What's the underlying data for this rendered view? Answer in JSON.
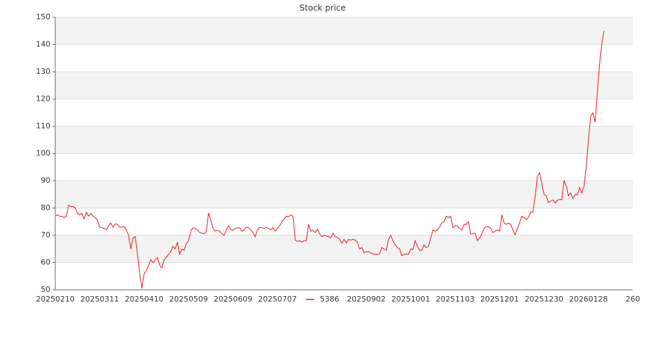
{
  "chart_data": {
    "type": "line",
    "title": "Stock price",
    "categories": [
      "20250210",
      null,
      null,
      null,
      null,
      null,
      null,
      null,
      null,
      null,
      null,
      null,
      null,
      null,
      null,
      null,
      null,
      null,
      null,
      null,
      "20250311",
      null,
      null,
      null,
      null,
      null,
      null,
      null,
      null,
      null,
      null,
      null,
      null,
      null,
      null,
      null,
      null,
      null,
      null,
      null,
      "20250410",
      null,
      null,
      null,
      null,
      null,
      null,
      null,
      null,
      null,
      null,
      null,
      null,
      null,
      null,
      null,
      null,
      null,
      null,
      null,
      "20250509",
      null,
      null,
      null,
      null,
      null,
      null,
      null,
      null,
      null,
      null,
      null,
      null,
      null,
      null,
      null,
      null,
      null,
      null,
      null,
      "20250609",
      null,
      null,
      null,
      null,
      null,
      null,
      null,
      null,
      null,
      null,
      null,
      null,
      null,
      null,
      null,
      null,
      null,
      null,
      null,
      "20250707",
      null,
      null,
      null,
      null,
      null,
      null,
      null,
      null,
      null,
      null,
      null,
      null,
      null,
      null,
      null,
      null,
      null,
      null,
      null,
      null,
      null,
      null,
      null,
      null,
      null,
      null,
      null,
      null,
      null,
      null,
      null,
      null,
      null,
      null,
      null,
      null,
      null,
      null,
      null,
      "20250902",
      null,
      null,
      null,
      null,
      null,
      null,
      null,
      null,
      null,
      null,
      null,
      null,
      null,
      null,
      null,
      null,
      null,
      null,
      null,
      "20251001",
      null,
      null,
      null,
      null,
      null,
      null,
      null,
      null,
      null,
      null,
      null,
      null,
      null,
      null,
      null,
      null,
      null,
      null,
      null,
      "20251103",
      null,
      null,
      null,
      null,
      null,
      null,
      null,
      null,
      null,
      null,
      null,
      null,
      null,
      null,
      null,
      null,
      null,
      null,
      null,
      "20251201",
      null,
      null,
      null,
      null,
      null,
      null,
      null,
      null,
      null,
      null,
      null,
      null,
      null,
      null,
      null,
      null,
      null,
      null,
      null,
      "20251230",
      null,
      null,
      null,
      null,
      null,
      null,
      null,
      null,
      null,
      null,
      null,
      null,
      null,
      null,
      null,
      null,
      null,
      null,
      null,
      "20260128",
      null,
      null,
      null,
      null,
      null,
      null,
      null,
      null,
      null,
      null,
      null,
      null,
      null,
      null,
      null,
      null,
      null,
      null,
      null,
      "260"
    ],
    "series": [
      {
        "name": "5386",
        "color": "#e8141e",
        "values": [
          77,
          77.5,
          77,
          77,
          76.5,
          77,
          81,
          80.5,
          80.5,
          80,
          78,
          77.5,
          78,
          76,
          78.5,
          77,
          78,
          77,
          76.5,
          75.5,
          73,
          72.8,
          72.5,
          72,
          73.5,
          74.5,
          73,
          74.2,
          74,
          73,
          73,
          73.2,
          72,
          70,
          65,
          69,
          69.5,
          63,
          56,
          50.5,
          56,
          57,
          59,
          61,
          60,
          61,
          61.8,
          59,
          58,
          61,
          62,
          63,
          64,
          66,
          65,
          67.5,
          63,
          65,
          64.5,
          67,
          68,
          71.5,
          72.8,
          72.5,
          72,
          71,
          70.8,
          70.5,
          71.5,
          78.2,
          75.5,
          72.5,
          71.5,
          71.8,
          71.5,
          70.5,
          70,
          72,
          73.5,
          72.2,
          71.8,
          72.5,
          72.8,
          72.8,
          71.5,
          72,
          73,
          72.8,
          72,
          71,
          69.5,
          72,
          73,
          72.8,
          72.5,
          73,
          72.5,
          72,
          72.8,
          71.5,
          72.5,
          73.5,
          75,
          76,
          77,
          76.8,
          77.5,
          77,
          68.2,
          67.8,
          68,
          67.5,
          68,
          68,
          74,
          71.5,
          71.8,
          71,
          72.2,
          70.5,
          69.5,
          70,
          69.8,
          69.5,
          69,
          70.8,
          69.5,
          69.2,
          68.5,
          67,
          68.5,
          67.2,
          68.5,
          68.2,
          68.5,
          68.2,
          67.5,
          65,
          65.5,
          63.5,
          64,
          64,
          63.5,
          63.2,
          63,
          63,
          63.2,
          65.5,
          65,
          64.5,
          68.5,
          70,
          68,
          66.5,
          65.5,
          65,
          62.5,
          63,
          63.2,
          63,
          65,
          64.8,
          68,
          66,
          64.5,
          64.5,
          66.5,
          65.5,
          66,
          69,
          72,
          71.5,
          72,
          73,
          74.5,
          75,
          77,
          76.5,
          77,
          72.8,
          73.5,
          73.5,
          72.5,
          72,
          74,
          74,
          75,
          70.5,
          70.5,
          70.8,
          68,
          69,
          70.5,
          72.5,
          73.2,
          73.2,
          72.5,
          71,
          71.5,
          72,
          71.5,
          77.5,
          74.5,
          74,
          74.5,
          74,
          72,
          70.2,
          72.5,
          74.5,
          77,
          76.5,
          75.8,
          76.5,
          78.5,
          78.5,
          84,
          91.5,
          93,
          89,
          85,
          84.5,
          82,
          82.5,
          83,
          81.8,
          82.8,
          83.2,
          83,
          90,
          88.2,
          84.5,
          85.5,
          83.5,
          85,
          84.8,
          87.5,
          85.5,
          88,
          95,
          105,
          113.5,
          115,
          111.5,
          122,
          133,
          140,
          145,
          null,
          null,
          null,
          null,
          null,
          null,
          null,
          null,
          null,
          null,
          null,
          null,
          null
        ]
      }
    ],
    "ylim": [
      50,
      150
    ],
    "yticks": [
      50,
      60,
      70,
      80,
      90,
      100,
      110,
      120,
      130,
      140,
      150
    ],
    "grid": true,
    "legend": "bottom"
  }
}
